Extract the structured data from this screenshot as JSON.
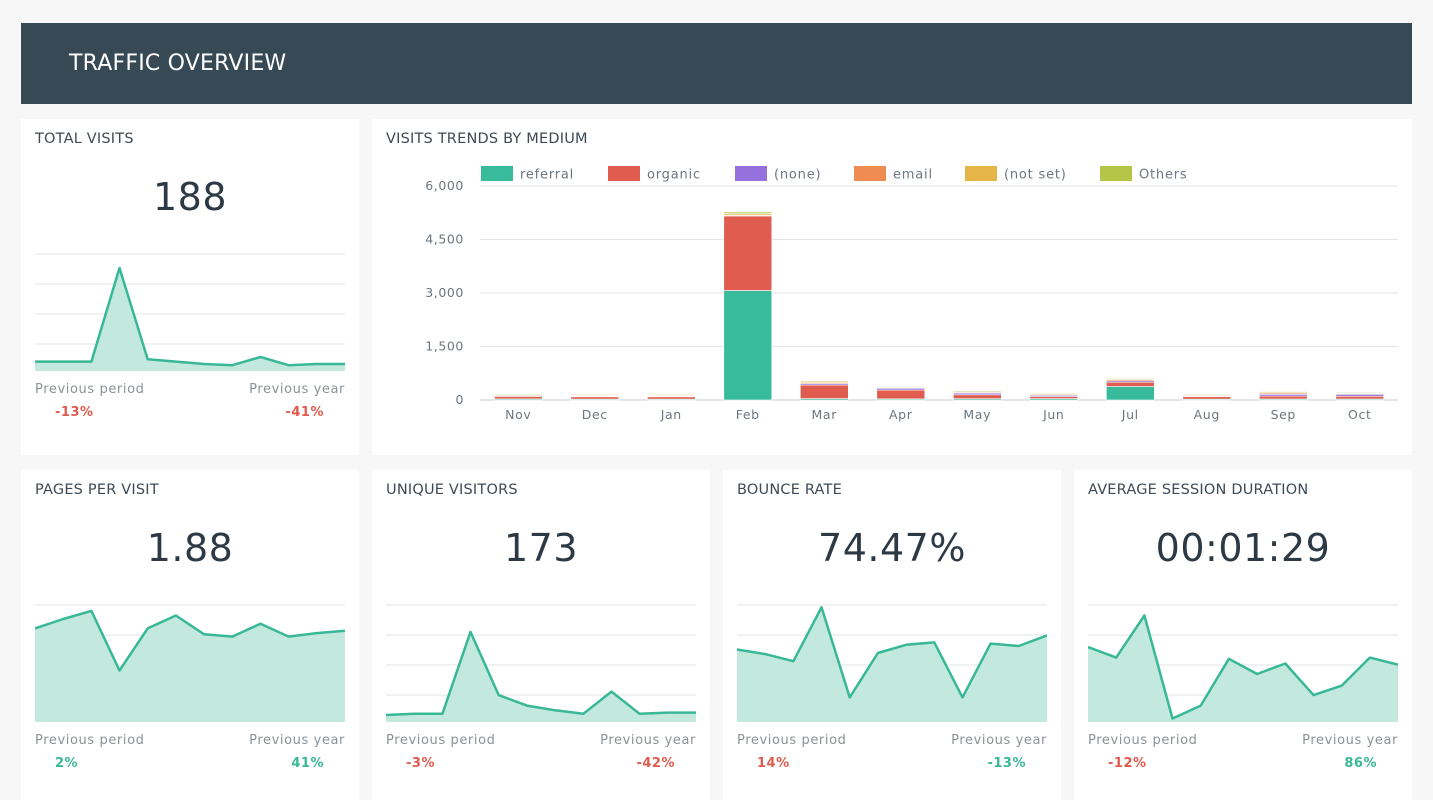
{
  "header": {
    "title": "TRAFFIC OVERVIEW"
  },
  "colors": {
    "header_bg": "#374955",
    "accent_green": "#38b897",
    "negative_red": "#e05a4e",
    "area_fill": "#c3e9de"
  },
  "kpis": {
    "total_visits": {
      "title": "TOTAL VISITS",
      "value": "188",
      "prev_period_label": "Previous period",
      "prev_period_value": "-13%",
      "prev_period_sign": "neg",
      "prev_year_label": "Previous year",
      "prev_year_value": "-41%",
      "prev_year_sign": "neg",
      "trend": [
        8,
        8,
        8,
        88,
        10,
        8,
        6,
        5,
        12,
        5,
        6,
        6
      ]
    },
    "pages_per_visit": {
      "title": "PAGES PER VISIT",
      "value": "1.88",
      "prev_period_label": "Previous period",
      "prev_period_value": "2%",
      "prev_period_sign": "pos",
      "prev_year_label": "Previous year",
      "prev_year_value": "41%",
      "prev_year_sign": "pos",
      "trend": [
        80,
        88,
        95,
        44,
        80,
        91,
        75,
        73,
        84,
        73,
        76,
        78
      ]
    },
    "unique_visitors": {
      "title": "UNIQUE VISITORS",
      "value": "173",
      "prev_period_label": "Previous period",
      "prev_period_value": "-3%",
      "prev_period_sign": "neg",
      "prev_year_label": "Previous year",
      "prev_year_value": "-42%",
      "prev_year_sign": "neg",
      "trend": [
        6,
        7,
        7,
        77,
        23,
        14,
        10,
        7,
        26,
        7,
        8,
        8
      ]
    },
    "bounce_rate": {
      "title": "BOUNCE RATE",
      "value": "74.47%",
      "prev_period_label": "Previous period",
      "prev_period_value": "14%",
      "prev_period_sign": "neg",
      "prev_year_label": "Previous year",
      "prev_year_value": "-13%",
      "prev_year_sign": "pos",
      "trend": [
        62,
        58,
        52,
        98,
        21,
        59,
        66,
        68,
        21,
        67,
        65,
        74
      ]
    },
    "avg_session_duration": {
      "title": "AVERAGE SESSION DURATION",
      "value": "00:01:29",
      "prev_period_label": "Previous period",
      "prev_period_value": "-12%",
      "prev_period_sign": "neg",
      "prev_year_label": "Previous year",
      "prev_year_value": "86%",
      "prev_year_sign": "pos",
      "trend": [
        64,
        55,
        91,
        3,
        14,
        54,
        41,
        50,
        23,
        31,
        55,
        49
      ]
    }
  },
  "trends": {
    "title": "VISITS TRENDS BY MEDIUM"
  },
  "chart_data": {
    "type": "bar",
    "stacked": true,
    "categories": [
      "Nov",
      "Dec",
      "Jan",
      "Feb",
      "Mar",
      "Apr",
      "May",
      "Jun",
      "Jul",
      "Aug",
      "Sep",
      "Oct"
    ],
    "series": [
      {
        "name": "referral",
        "color": "#38bb9b",
        "values": [
          30,
          25,
          25,
          3070,
          40,
          30,
          35,
          40,
          380,
          25,
          30,
          30
        ]
      },
      {
        "name": "organic",
        "color": "#e05c4f",
        "values": [
          70,
          65,
          65,
          2100,
          380,
          250,
          110,
          55,
          120,
          70,
          80,
          75
        ]
      },
      {
        "name": "(none)",
        "color": "#9670dc",
        "values": [
          25,
          25,
          25,
          10,
          40,
          60,
          50,
          40,
          40,
          25,
          50,
          60
        ]
      },
      {
        "name": "email",
        "color": "#ee8c52",
        "values": [
          10,
          10,
          10,
          5,
          30,
          10,
          20,
          15,
          30,
          10,
          30,
          15
        ]
      },
      {
        "name": "(not set)",
        "color": "#e6b54a",
        "values": [
          30,
          25,
          25,
          40,
          40,
          20,
          40,
          40,
          40,
          25,
          40,
          25
        ]
      },
      {
        "name": "Others",
        "color": "#b5c548",
        "values": [
          5,
          5,
          5,
          45,
          10,
          5,
          5,
          5,
          5,
          5,
          5,
          5
        ]
      }
    ],
    "ylim": [
      0,
      6000
    ],
    "yticks": [
      "6,000",
      "4,500",
      "3,000",
      "1,500",
      "0"
    ],
    "ytick_values": [
      6000,
      4500,
      3000,
      1500,
      0
    ],
    "legend_position": "top",
    "grid": true
  }
}
